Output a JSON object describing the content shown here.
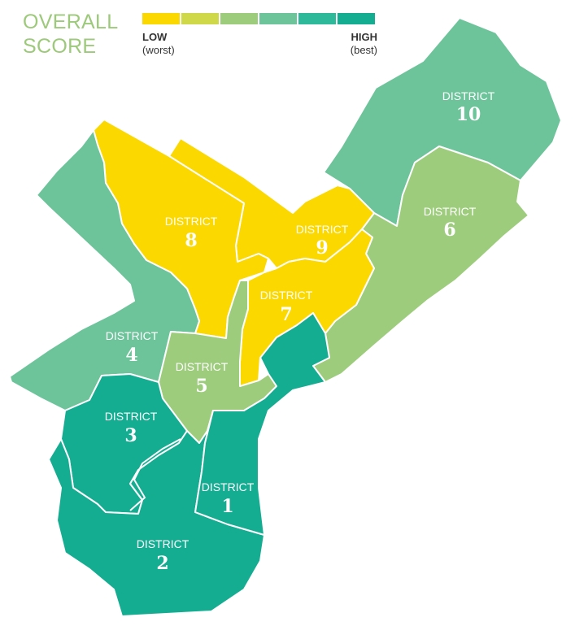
{
  "legend": {
    "title_line1": "OVERALL",
    "title_line2": "SCORE",
    "low_label": "LOW",
    "low_sub": "(worst)",
    "high_label": "HIGH",
    "high_sub": "(best)",
    "scale_colors": [
      "#fbd800",
      "#cfd848",
      "#9dcd7c",
      "#6dc49a",
      "#2eb99b",
      "#14ad92"
    ]
  },
  "districts": [
    {
      "id": "1",
      "label": "DISTRICT",
      "number": "1",
      "color": "#14ad92"
    },
    {
      "id": "2",
      "label": "DISTRICT",
      "number": "2",
      "color": "#14ad92"
    },
    {
      "id": "3",
      "label": "DISTRICT",
      "number": "3",
      "color": "#14ad92"
    },
    {
      "id": "4",
      "label": "DISTRICT",
      "number": "4",
      "color": "#6dc49a"
    },
    {
      "id": "5",
      "label": "DISTRICT",
      "number": "5",
      "color": "#9dcd7c"
    },
    {
      "id": "6",
      "label": "DISTRICT",
      "number": "6",
      "color": "#9dcd7c"
    },
    {
      "id": "7",
      "label": "DISTRICT",
      "number": "7",
      "color": "#fbd800"
    },
    {
      "id": "8",
      "label": "DISTRICT",
      "number": "8",
      "color": "#fbd800"
    },
    {
      "id": "9",
      "label": "DISTRICT",
      "number": "9",
      "color": "#fbd800"
    },
    {
      "id": "10",
      "label": "DISTRICT",
      "number": "10",
      "color": "#6dc49a"
    }
  ]
}
